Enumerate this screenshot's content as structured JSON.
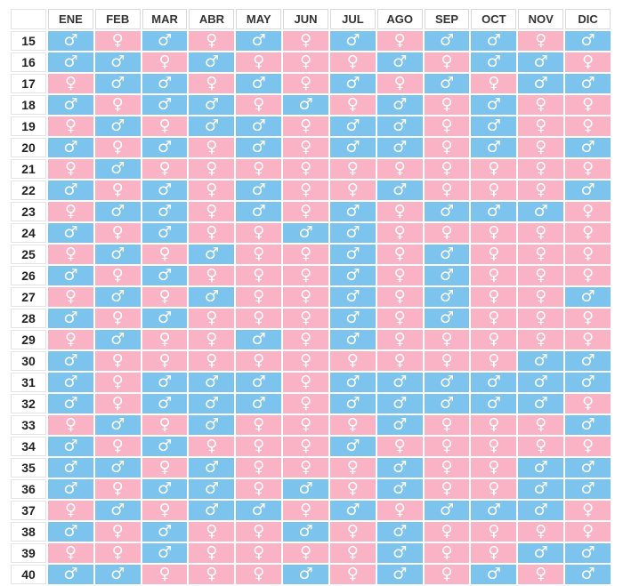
{
  "chart_data": {
    "type": "table",
    "corner": "",
    "columns": [
      "ENE",
      "FEB",
      "MAR",
      "ABR",
      "MAY",
      "JUN",
      "JUL",
      "AGO",
      "SEP",
      "OCT",
      "NOV",
      "DIC"
    ],
    "symbols": {
      "M": "♂",
      "F": "♀"
    },
    "colors": {
      "M": "#7cc3ee",
      "F": "#f9b3c4"
    },
    "rows": [
      {
        "age": "15",
        "values": [
          "M",
          "F",
          "M",
          "F",
          "M",
          "F",
          "M",
          "F",
          "M",
          "M",
          "F",
          "M"
        ]
      },
      {
        "age": "16",
        "values": [
          "M",
          "M",
          "F",
          "M",
          "F",
          "F",
          "F",
          "M",
          "F",
          "M",
          "M",
          "F"
        ]
      },
      {
        "age": "17",
        "values": [
          "F",
          "M",
          "M",
          "F",
          "M",
          "F",
          "M",
          "F",
          "M",
          "F",
          "M",
          "M"
        ]
      },
      {
        "age": "18",
        "values": [
          "M",
          "F",
          "M",
          "M",
          "F",
          "M",
          "F",
          "M",
          "F",
          "M",
          "F",
          "F"
        ]
      },
      {
        "age": "19",
        "values": [
          "F",
          "M",
          "F",
          "M",
          "M",
          "F",
          "M",
          "M",
          "F",
          "M",
          "F",
          "F"
        ]
      },
      {
        "age": "20",
        "values": [
          "M",
          "F",
          "M",
          "F",
          "M",
          "F",
          "M",
          "M",
          "F",
          "M",
          "F",
          "M"
        ]
      },
      {
        "age": "21",
        "values": [
          "F",
          "M",
          "F",
          "F",
          "F",
          "F",
          "F",
          "F",
          "F",
          "F",
          "F",
          "F"
        ]
      },
      {
        "age": "22",
        "values": [
          "M",
          "F",
          "M",
          "F",
          "M",
          "F",
          "F",
          "M",
          "F",
          "F",
          "F",
          "M"
        ]
      },
      {
        "age": "23",
        "values": [
          "F",
          "M",
          "M",
          "F",
          "M",
          "F",
          "M",
          "F",
          "M",
          "M",
          "M",
          "F"
        ]
      },
      {
        "age": "24",
        "values": [
          "M",
          "F",
          "M",
          "F",
          "F",
          "M",
          "M",
          "F",
          "F",
          "F",
          "F",
          "F"
        ]
      },
      {
        "age": "25",
        "values": [
          "F",
          "M",
          "F",
          "M",
          "F",
          "F",
          "M",
          "F",
          "M",
          "F",
          "F",
          "F"
        ]
      },
      {
        "age": "26",
        "values": [
          "M",
          "F",
          "M",
          "F",
          "F",
          "F",
          "M",
          "F",
          "M",
          "F",
          "F",
          "F"
        ]
      },
      {
        "age": "27",
        "values": [
          "F",
          "M",
          "F",
          "M",
          "F",
          "F",
          "M",
          "F",
          "M",
          "F",
          "F",
          "M"
        ]
      },
      {
        "age": "28",
        "values": [
          "M",
          "F",
          "M",
          "F",
          "F",
          "F",
          "M",
          "F",
          "M",
          "F",
          "F",
          "F"
        ]
      },
      {
        "age": "29",
        "values": [
          "F",
          "M",
          "F",
          "F",
          "M",
          "F",
          "M",
          "F",
          "F",
          "F",
          "F",
          "F"
        ]
      },
      {
        "age": "30",
        "values": [
          "M",
          "F",
          "F",
          "F",
          "F",
          "F",
          "F",
          "F",
          "F",
          "F",
          "M",
          "M"
        ]
      },
      {
        "age": "31",
        "values": [
          "M",
          "F",
          "M",
          "M",
          "M",
          "F",
          "M",
          "M",
          "M",
          "M",
          "M",
          "M"
        ]
      },
      {
        "age": "32",
        "values": [
          "M",
          "F",
          "M",
          "M",
          "M",
          "F",
          "M",
          "M",
          "M",
          "M",
          "M",
          "F"
        ]
      },
      {
        "age": "33",
        "values": [
          "F",
          "M",
          "F",
          "M",
          "F",
          "F",
          "F",
          "M",
          "F",
          "F",
          "F",
          "M"
        ]
      },
      {
        "age": "34",
        "values": [
          "M",
          "F",
          "M",
          "F",
          "F",
          "F",
          "M",
          "F",
          "F",
          "F",
          "F",
          "F"
        ]
      },
      {
        "age": "35",
        "values": [
          "M",
          "M",
          "F",
          "M",
          "F",
          "F",
          "F",
          "M",
          "F",
          "F",
          "M",
          "M"
        ]
      },
      {
        "age": "36",
        "values": [
          "M",
          "F",
          "M",
          "M",
          "F",
          "M",
          "F",
          "M",
          "F",
          "F",
          "M",
          "M"
        ]
      },
      {
        "age": "37",
        "values": [
          "F",
          "M",
          "F",
          "M",
          "M",
          "F",
          "M",
          "F",
          "M",
          "M",
          "M",
          "F"
        ]
      },
      {
        "age": "38",
        "values": [
          "M",
          "F",
          "M",
          "F",
          "F",
          "M",
          "F",
          "M",
          "F",
          "F",
          "F",
          "F"
        ]
      },
      {
        "age": "39",
        "values": [
          "F",
          "F",
          "M",
          "F",
          "F",
          "F",
          "F",
          "M",
          "F",
          "F",
          "M",
          "M"
        ]
      },
      {
        "age": "40",
        "values": [
          "M",
          "M",
          "F",
          "F",
          "F",
          "M",
          "F",
          "M",
          "F",
          "M",
          "F",
          "M"
        ]
      }
    ]
  }
}
